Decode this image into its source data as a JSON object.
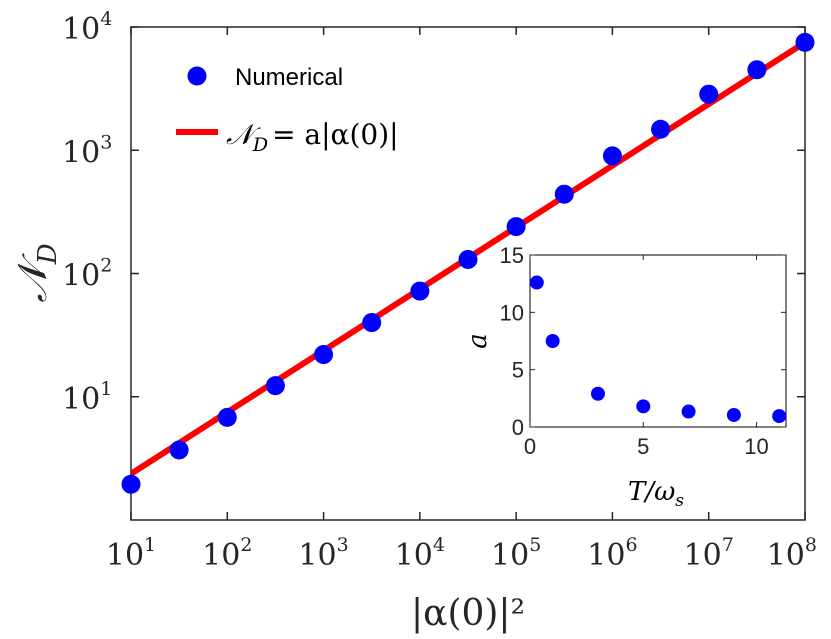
{
  "chart_data": [
    {
      "type": "scatter+line",
      "title": "",
      "xlabel": "|α(0)|²",
      "ylabel": "𝒩",
      "ylabel_sub": "D",
      "xscale": "log",
      "yscale": "log",
      "xlim": [
        10,
        100000000
      ],
      "ylim": [
        1,
        10000
      ],
      "x_ticks": [
        {
          "base": "10",
          "exp": "1",
          "value": 10
        },
        {
          "base": "10",
          "exp": "2",
          "value": 100
        },
        {
          "base": "10",
          "exp": "3",
          "value": 1000
        },
        {
          "base": "10",
          "exp": "4",
          "value": 10000
        },
        {
          "base": "10",
          "exp": "5",
          "value": 100000
        },
        {
          "base": "10",
          "exp": "6",
          "value": 1000000
        },
        {
          "base": "10",
          "exp": "7",
          "value": 10000000
        },
        {
          "base": "10",
          "exp": "8",
          "value": 100000000
        }
      ],
      "y_ticks": [
        {
          "base": "10",
          "exp": "1",
          "value": 10
        },
        {
          "base": "10",
          "exp": "2",
          "value": 100
        },
        {
          "base": "10",
          "exp": "3",
          "value": 1000
        },
        {
          "base": "10",
          "exp": "4",
          "value": 10000
        }
      ],
      "legend_position": "top-left",
      "series": [
        {
          "name": "Numerical",
          "kind": "scatter",
          "color": "#0000ff",
          "x": [
            10,
            31.6,
            100,
            316,
            1000,
            3162,
            10000,
            31623,
            100000,
            316228,
            1000000,
            3162278,
            10000000,
            31622777,
            100000000
          ],
          "y": [
            1.95,
            3.7,
            6.8,
            12.3,
            22,
            40,
            72,
            130,
            240,
            440,
            900,
            1480,
            2850,
            4500,
            7500
          ]
        },
        {
          "name": "𝒩_D = a|α(0)|",
          "legend_label": "= a|α(0)|",
          "kind": "line",
          "color": "#ff0000",
          "x": [
            10,
            100000000
          ],
          "y": [
            2.37,
            7500
          ]
        }
      ]
    },
    {
      "type": "scatter",
      "title": "",
      "xlabel": "T/ω",
      "xlabel_sub": "s",
      "ylabel": "a",
      "xlim": [
        0,
        11.3
      ],
      "ylim": [
        0,
        15
      ],
      "x_ticks": [
        "0",
        "5",
        "10"
      ],
      "x_tick_values": [
        0,
        5,
        10
      ],
      "y_ticks": [
        "0",
        "5",
        "10",
        "15"
      ],
      "y_tick_values": [
        0,
        5,
        10,
        15
      ],
      "series": [
        {
          "name": "a",
          "color": "#0000ff",
          "x": [
            0.3,
            1,
            3,
            5,
            7,
            9,
            11
          ],
          "y": [
            12.6,
            7.5,
            2.9,
            1.8,
            1.35,
            1.05,
            0.95
          ]
        }
      ]
    }
  ],
  "colors": {
    "axis": "#262626",
    "scatter": "#0000ff",
    "fit_line": "#ff0000"
  }
}
